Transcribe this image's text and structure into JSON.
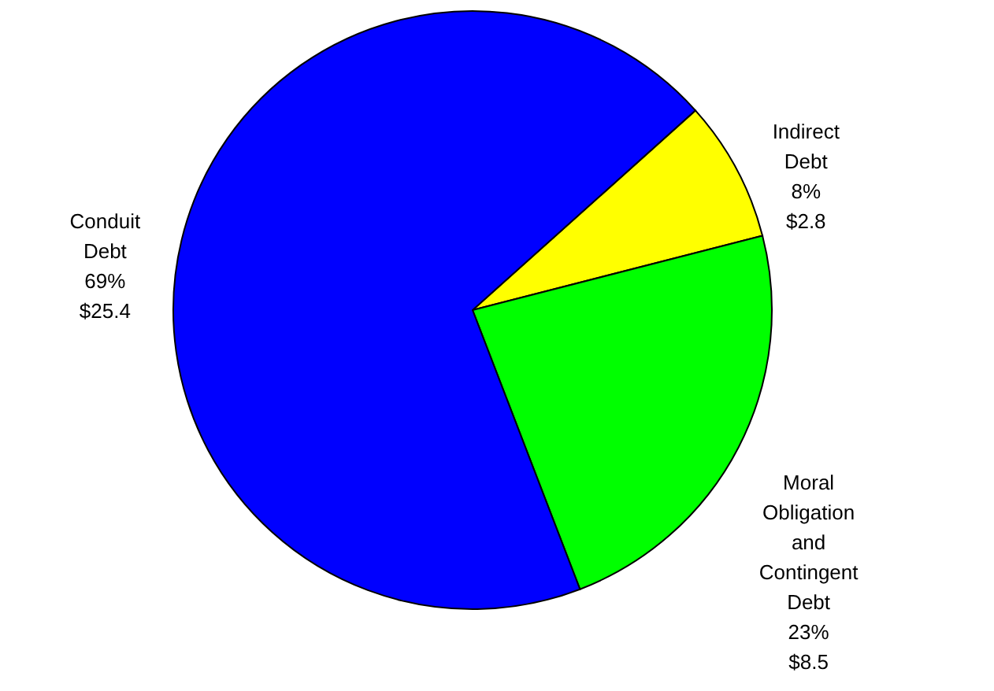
{
  "chart_data": {
    "type": "pie",
    "categories": [
      "Indirect Debt",
      "Moral Obligation and Contingent Debt",
      "Conduit Debt"
    ],
    "values": [
      2.8,
      8.5,
      25.4
    ],
    "value_labels": [
      "8% $2.8",
      "23% $8.5",
      "69% $25.4"
    ],
    "colors": [
      "#ffff00",
      "#00ff00",
      "#0000ff"
    ]
  }
}
